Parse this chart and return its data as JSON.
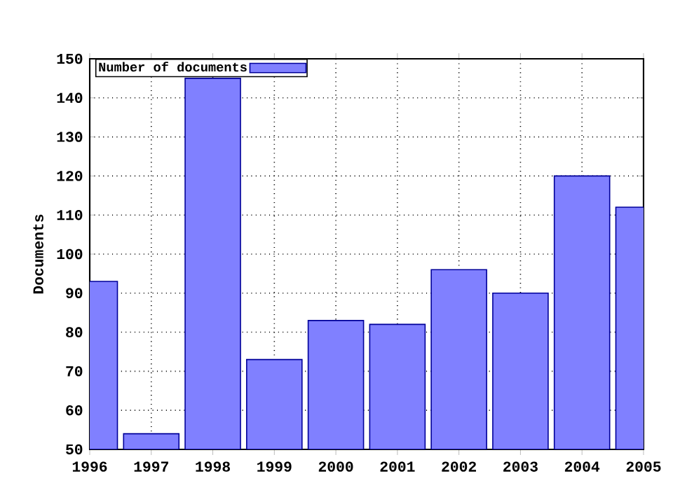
{
  "chart_data": {
    "type": "bar",
    "ylabel": "Documents",
    "x": [
      1996,
      1997,
      1998,
      1999,
      2000,
      2001,
      2002,
      2003,
      2004,
      2005
    ],
    "series": [
      {
        "name": "Number of documents",
        "color": "#8080ff",
        "values": [
          93,
          54,
          145,
          73,
          83,
          82,
          96,
          90,
          120,
          112
        ]
      }
    ],
    "xlim": [
      1996,
      2005
    ],
    "xticks": [
      1996,
      1997,
      1998,
      1999,
      2000,
      2001,
      2002,
      2003,
      2004,
      2005
    ],
    "ylim": [
      50,
      150
    ],
    "yticks": [
      50,
      60,
      70,
      80,
      90,
      100,
      110,
      120,
      130,
      140,
      150
    ],
    "grid": true,
    "legend": "top left"
  }
}
